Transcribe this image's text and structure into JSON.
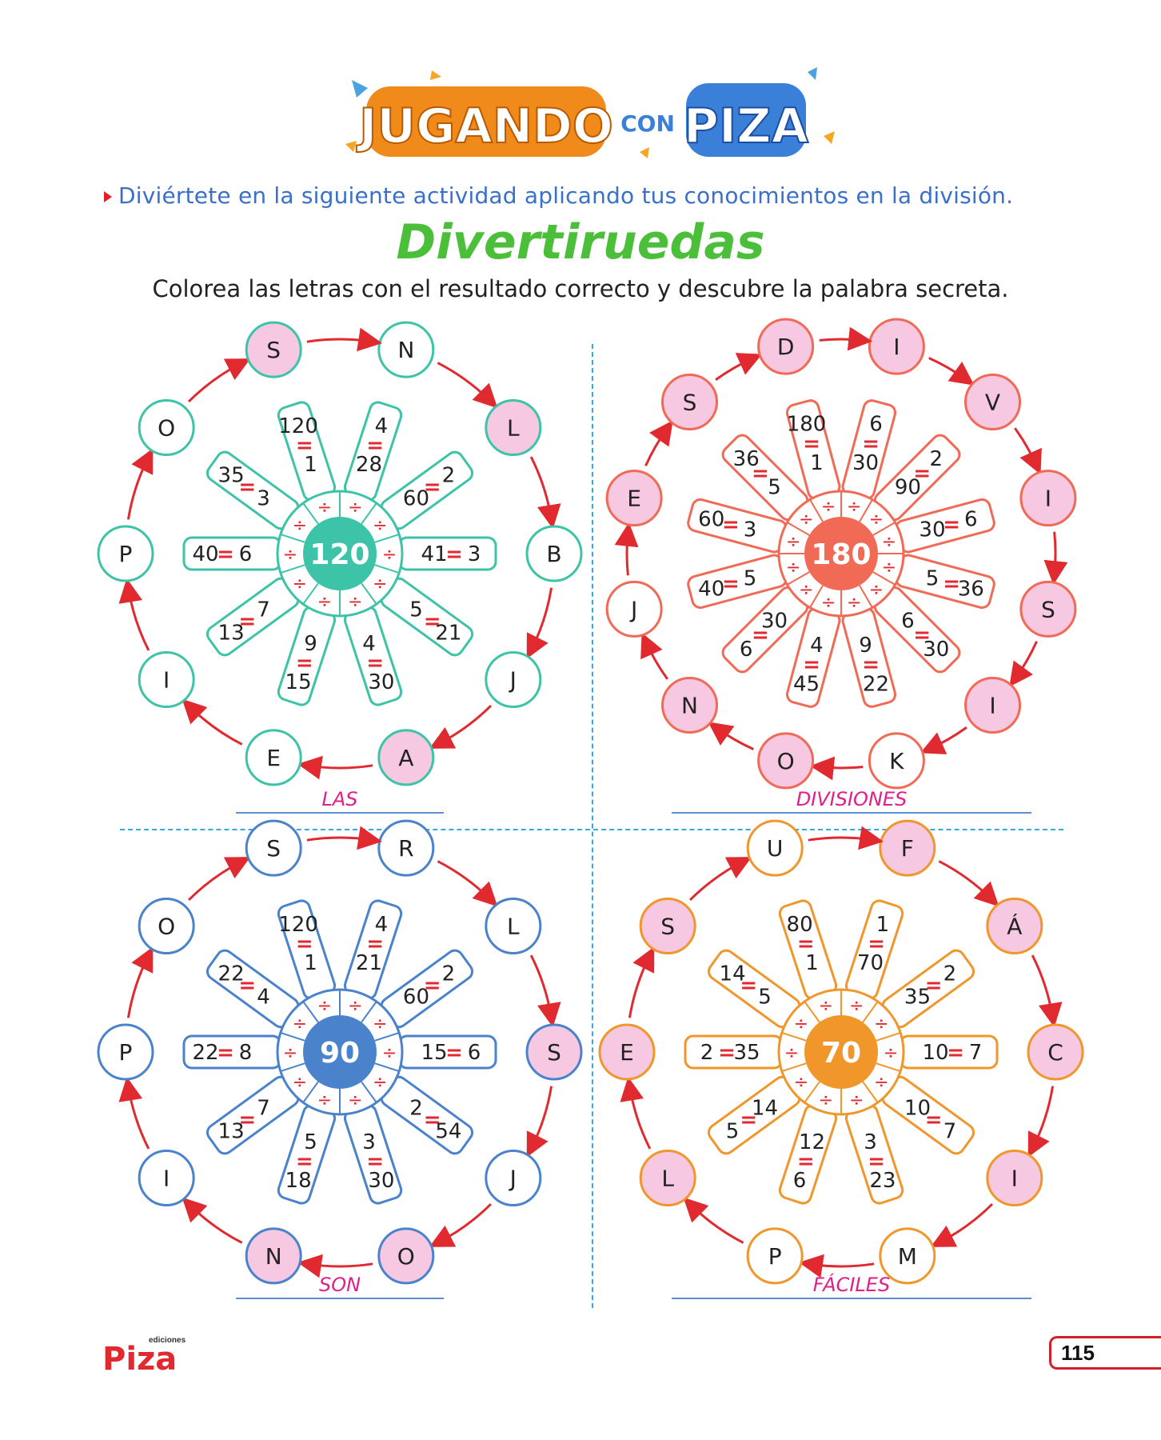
{
  "header": {
    "logo_word1": "JUGANDO",
    "logo_word2": "CON",
    "logo_word3": "PIZA"
  },
  "instruction": "Diviértete en la siguiente actividad aplicando tus conocimientos en la división.",
  "activity_title": "Divertiruedas",
  "activity_subtitle": "Colorea las letras con el resultado correcto y descubre la palabra secreta.",
  "colors": {
    "highlight": "#f7c8e2",
    "arrow": "#e02a30",
    "equals": "#e02a30",
    "answer_text": "#e0208a"
  },
  "wheels": [
    {
      "center": "120",
      "color": "#3cc3a8",
      "answer": "LAS",
      "spokes": [
        {
          "a": "28",
          "b": "4"
        },
        {
          "a": "60",
          "b": "2"
        },
        {
          "a": "41",
          "b": "3"
        },
        {
          "a": "5",
          "b": "21"
        },
        {
          "a": "4",
          "b": "30"
        },
        {
          "a": "9",
          "b": "15"
        },
        {
          "a": "7",
          "b": "13"
        },
        {
          "a": "6",
          "b": "40"
        },
        {
          "a": "3",
          "b": "35"
        },
        {
          "a": "1",
          "b": "120"
        }
      ],
      "letters": [
        {
          "text": "N",
          "hl": false
        },
        {
          "text": "L",
          "hl": true
        },
        {
          "text": "B",
          "hl": false
        },
        {
          "text": "J",
          "hl": false
        },
        {
          "text": "A",
          "hl": true
        },
        {
          "text": "E",
          "hl": false
        },
        {
          "text": "I",
          "hl": false
        },
        {
          "text": "P",
          "hl": false
        },
        {
          "text": "O",
          "hl": false
        },
        {
          "text": "S",
          "hl": true
        }
      ]
    },
    {
      "center": "180",
      "color": "#f06a55",
      "answer": "DIVISIONES",
      "spokes": [
        {
          "a": "30",
          "b": "6"
        },
        {
          "a": "90",
          "b": "2"
        },
        {
          "a": "30",
          "b": "6"
        },
        {
          "a": "5",
          "b": "36"
        },
        {
          "a": "6",
          "b": "30"
        },
        {
          "a": "9",
          "b": "22"
        },
        {
          "a": "4",
          "b": "45"
        },
        {
          "a": "30",
          "b": "6"
        },
        {
          "a": "5",
          "b": "40"
        },
        {
          "a": "3",
          "b": "60"
        },
        {
          "a": "5",
          "b": "36"
        },
        {
          "a": "1",
          "b": "180"
        }
      ],
      "letters": [
        {
          "text": "I",
          "hl": true
        },
        {
          "text": "V",
          "hl": true
        },
        {
          "text": "I",
          "hl": true
        },
        {
          "text": "S",
          "hl": true
        },
        {
          "text": "I",
          "hl": true
        },
        {
          "text": "K",
          "hl": false
        },
        {
          "text": "O",
          "hl": true
        },
        {
          "text": "N",
          "hl": true
        },
        {
          "text": "J",
          "hl": false
        },
        {
          "text": "E",
          "hl": true
        },
        {
          "text": "S",
          "hl": true
        },
        {
          "text": "D",
          "hl": true
        }
      ]
    },
    {
      "center": "90",
      "color": "#4a82cc",
      "answer": "SON",
      "spokes": [
        {
          "a": "21",
          "b": "4"
        },
        {
          "a": "60",
          "b": "2"
        },
        {
          "a": "15",
          "b": "6"
        },
        {
          "a": "2",
          "b": "54"
        },
        {
          "a": "3",
          "b": "30"
        },
        {
          "a": "5",
          "b": "18"
        },
        {
          "a": "7",
          "b": "13"
        },
        {
          "a": "8",
          "b": "22"
        },
        {
          "a": "4",
          "b": "22"
        },
        {
          "a": "1",
          "b": "120"
        }
      ],
      "letters": [
        {
          "text": "R",
          "hl": false
        },
        {
          "text": "L",
          "hl": false
        },
        {
          "text": "S",
          "hl": true
        },
        {
          "text": "J",
          "hl": false
        },
        {
          "text": "O",
          "hl": true
        },
        {
          "text": "N",
          "hl": true
        },
        {
          "text": "I",
          "hl": false
        },
        {
          "text": "P",
          "hl": false
        },
        {
          "text": "O",
          "hl": false
        },
        {
          "text": "S",
          "hl": false
        }
      ]
    },
    {
      "center": "70",
      "color": "#f0962a",
      "answer": "FÁCILES",
      "spokes": [
        {
          "a": "70",
          "b": "1"
        },
        {
          "a": "35",
          "b": "2"
        },
        {
          "a": "10",
          "b": "7"
        },
        {
          "a": "10",
          "b": "7"
        },
        {
          "a": "3",
          "b": "23"
        },
        {
          "a": "12",
          "b": "6"
        },
        {
          "a": "14",
          "b": "5"
        },
        {
          "a": "35",
          "b": "2"
        },
        {
          "a": "5",
          "b": "14"
        },
        {
          "a": "1",
          "b": "80"
        }
      ],
      "letters": [
        {
          "text": "F",
          "hl": true
        },
        {
          "text": "Á",
          "hl": true
        },
        {
          "text": "C",
          "hl": true
        },
        {
          "text": "I",
          "hl": true
        },
        {
          "text": "M",
          "hl": false
        },
        {
          "text": "P",
          "hl": false
        },
        {
          "text": "L",
          "hl": true
        },
        {
          "text": "E",
          "hl": true
        },
        {
          "text": "S",
          "hl": true
        },
        {
          "text": "U",
          "hl": false
        }
      ]
    }
  ],
  "footer": {
    "logo_small": "ediciones",
    "logo": "Piza",
    "page_number": "115"
  }
}
